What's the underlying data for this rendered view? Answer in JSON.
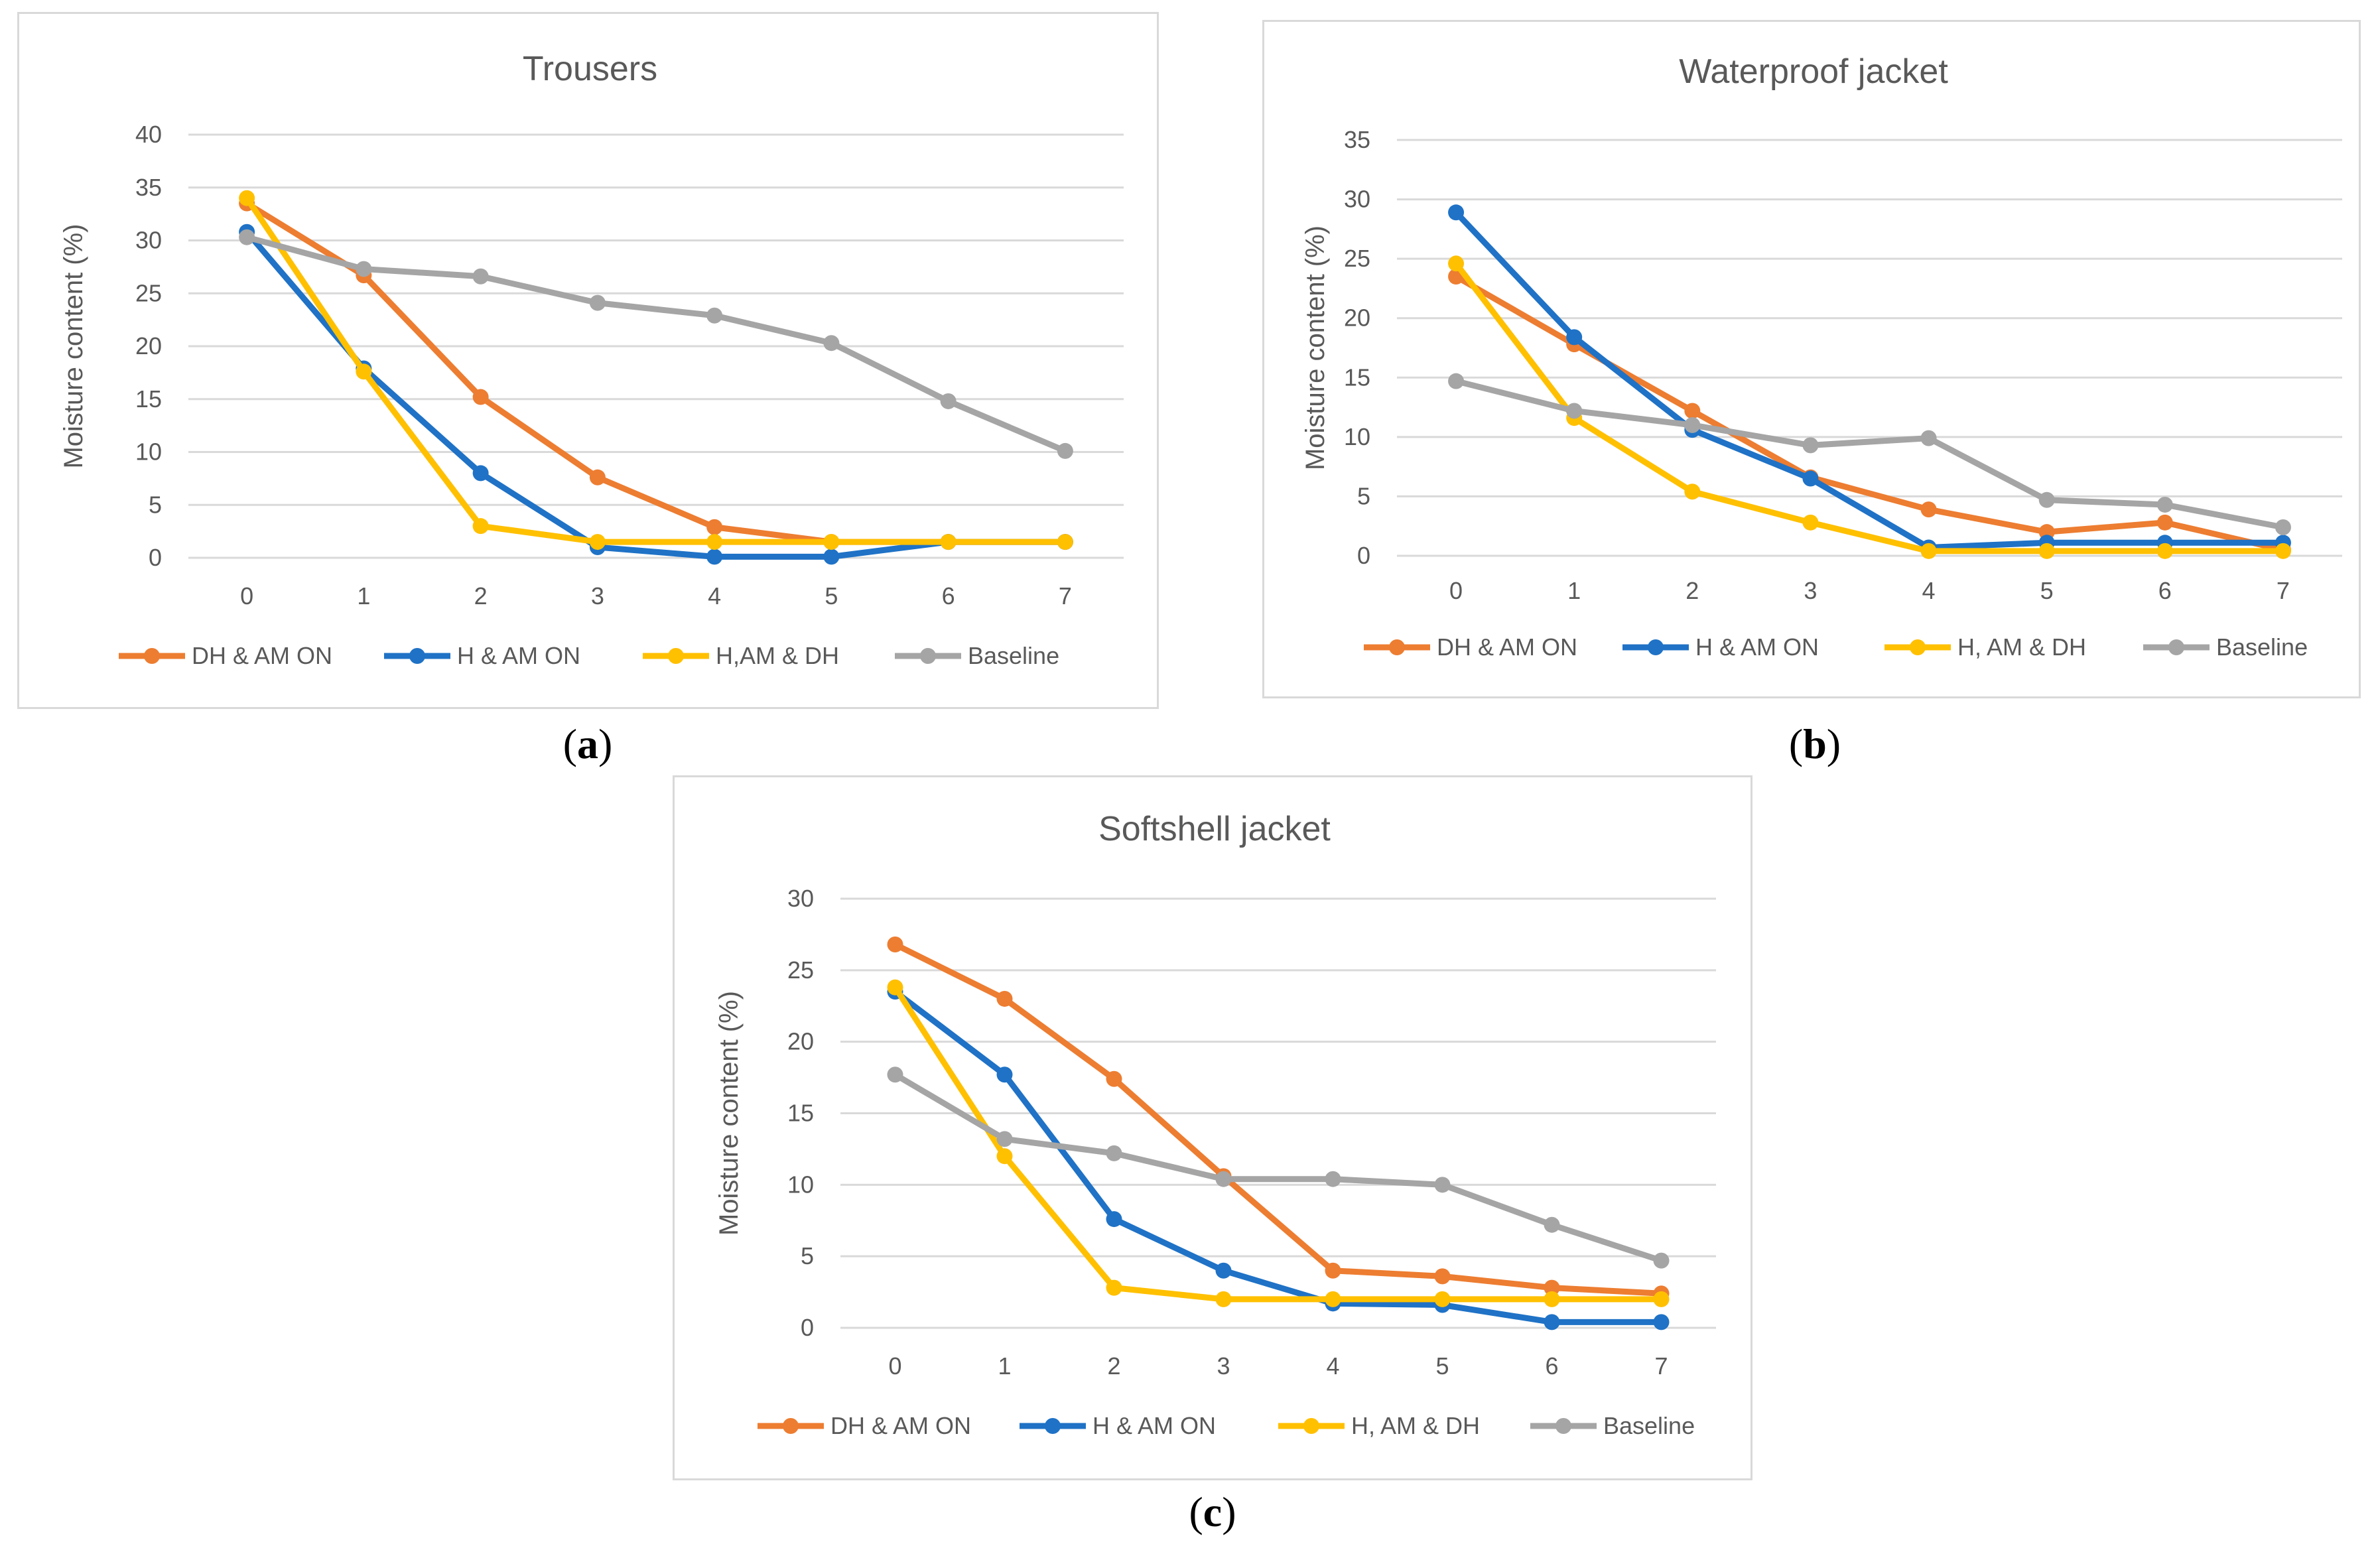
{
  "colors": {
    "DH_AM_ON": "#ED7D31",
    "H_AM_ON": "#1F72C6",
    "H_AM_DH": "#FFC000",
    "Baseline": "#A5A5A5",
    "grid": "#d9d9d9",
    "text": "#595959"
  },
  "chart_data": [
    {
      "type": "line",
      "title": "Trousers",
      "caption": "a",
      "ylabel": "Moisture content (%)",
      "xlabel": "",
      "x": [
        0,
        1,
        2,
        3,
        4,
        5,
        6,
        7
      ],
      "ylim": [
        0,
        40
      ],
      "yticks": [
        0,
        5,
        10,
        15,
        20,
        25,
        30,
        35,
        40
      ],
      "grid": true,
      "legend": "bottom",
      "series": [
        {
          "name": "DH & AM ON",
          "color": "#ED7D31",
          "values": [
            33.5,
            26.7,
            15.2,
            7.6,
            2.9,
            1.5,
            1.5,
            1.5
          ]
        },
        {
          "name": "H & AM ON",
          "color": "#1F72C6",
          "values": [
            30.8,
            17.9,
            8.0,
            1.0,
            0.1,
            0.1,
            1.5,
            1.5
          ]
        },
        {
          "name": "H,AM & DH",
          "color": "#FFC000",
          "values": [
            34.0,
            17.6,
            3.0,
            1.5,
            1.5,
            1.5,
            1.5,
            1.5
          ]
        },
        {
          "name": "Baseline",
          "color": "#A5A5A5",
          "values": [
            30.3,
            27.3,
            26.6,
            24.1,
            22.9,
            20.3,
            14.8,
            10.1
          ]
        }
      ]
    },
    {
      "type": "line",
      "title": "Waterproof jacket",
      "caption": "b",
      "ylabel": "Moisture content (%)",
      "xlabel": "",
      "x": [
        0,
        1,
        2,
        3,
        4,
        5,
        6,
        7
      ],
      "ylim": [
        0,
        35
      ],
      "yticks": [
        0,
        5,
        10,
        15,
        20,
        25,
        30,
        35
      ],
      "grid": true,
      "legend": "bottom",
      "series": [
        {
          "name": "DH & AM ON",
          "color": "#ED7D31",
          "values": [
            23.5,
            17.8,
            12.2,
            6.6,
            3.9,
            2.0,
            2.8,
            0.5
          ]
        },
        {
          "name": "H & AM ON",
          "color": "#1F72C6",
          "values": [
            28.9,
            18.4,
            10.6,
            6.5,
            0.7,
            1.1,
            1.1,
            1.1
          ]
        },
        {
          "name": "H, AM & DH",
          "color": "#FFC000",
          "values": [
            24.6,
            11.6,
            5.4,
            2.8,
            0.4,
            0.4,
            0.4,
            0.4
          ]
        },
        {
          "name": "Baseline",
          "color": "#A5A5A5",
          "values": [
            14.7,
            12.2,
            11.0,
            9.3,
            9.9,
            4.7,
            4.3,
            2.4
          ]
        }
      ]
    },
    {
      "type": "line",
      "title": "Softshell jacket",
      "caption": "c",
      "ylabel": "Moisture content (%)",
      "xlabel": "",
      "x": [
        0,
        1,
        2,
        3,
        4,
        5,
        6,
        7
      ],
      "ylim": [
        0,
        30
      ],
      "yticks": [
        0,
        5,
        10,
        15,
        20,
        25,
        30
      ],
      "grid": true,
      "legend": "bottom",
      "series": [
        {
          "name": "DH & AM ON",
          "color": "#ED7D31",
          "values": [
            26.8,
            23.0,
            17.4,
            10.6,
            4.0,
            3.6,
            2.8,
            2.4
          ]
        },
        {
          "name": "H & AM ON",
          "color": "#1F72C6",
          "values": [
            23.5,
            17.7,
            7.6,
            4.0,
            1.7,
            1.6,
            0.4,
            0.4
          ]
        },
        {
          "name": "H, AM & DH",
          "color": "#FFC000",
          "values": [
            23.8,
            12.0,
            2.8,
            2.0,
            2.0,
            2.0,
            2.0,
            2.0
          ]
        },
        {
          "name": "Baseline",
          "color": "#A5A5A5",
          "values": [
            17.7,
            13.2,
            12.2,
            10.4,
            10.4,
            10.0,
            7.2,
            4.7
          ]
        }
      ]
    }
  ]
}
